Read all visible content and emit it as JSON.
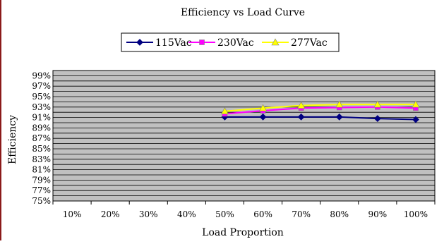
{
  "chart_data": {
    "type": "line",
    "title": "Efficiency vs Load Curve",
    "xlabel": "Load Proportion",
    "ylabel": "Efficiency",
    "categories": [
      "10%",
      "20%",
      "30%",
      "40%",
      "50%",
      "60%",
      "70%",
      "80%",
      "90%",
      "100%"
    ],
    "yticks": [
      "75%",
      "77%",
      "79%",
      "81%",
      "83%",
      "85%",
      "87%",
      "89%",
      "91%",
      "93%",
      "95%",
      "97%",
      "99%"
    ],
    "ylim": [
      75,
      100
    ],
    "ytick_step": 2,
    "grid": true,
    "legend_position": "top-center",
    "plot_background": "#c0c0c0",
    "series": [
      {
        "name": "115Vac",
        "color": "#000080",
        "marker": "diamond",
        "values": [
          null,
          null,
          null,
          null,
          91.1,
          91.1,
          91.1,
          91.1,
          90.8,
          90.6
        ]
      },
      {
        "name": "230Vac",
        "color": "#ff00ff",
        "marker": "square",
        "values": [
          null,
          null,
          null,
          null,
          91.7,
          92.3,
          92.8,
          92.9,
          93.0,
          92.8
        ]
      },
      {
        "name": "277Vac",
        "color": "#ffff00",
        "marker": "triangle",
        "values": [
          null,
          null,
          null,
          null,
          92.2,
          92.8,
          93.3,
          93.5,
          93.5,
          93.5
        ]
      }
    ]
  }
}
